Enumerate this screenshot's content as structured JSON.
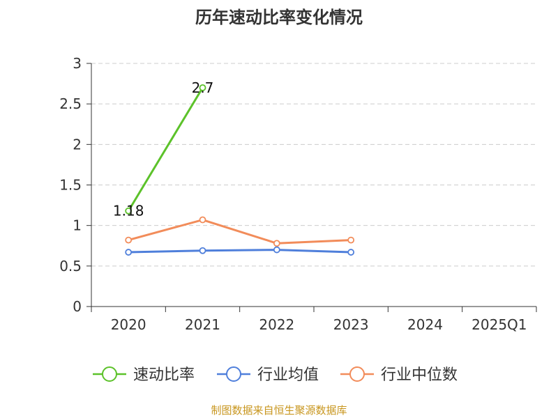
{
  "chart_data": {
    "type": "line",
    "title": "历年速动比率变化情况",
    "categories": [
      "2020",
      "2021",
      "2022",
      "2023",
      "2024",
      "2025Q1"
    ],
    "ylim": [
      0,
      3
    ],
    "yticks": [
      "0",
      "0.5",
      "1",
      "1.5",
      "2",
      "2.5",
      "3"
    ],
    "grid": true,
    "legend_position": "bottom",
    "series": [
      {
        "name": "速动比率",
        "color": "#5cc22a",
        "values": [
          1.18,
          2.7,
          null,
          null,
          null,
          null
        ],
        "labels": [
          "1.18",
          "2.7"
        ]
      },
      {
        "name": "行业均值",
        "color": "#4f7fdb",
        "values": [
          0.67,
          0.69,
          0.7,
          0.67,
          null,
          null
        ]
      },
      {
        "name": "行业中位数",
        "color": "#f28c5a",
        "values": [
          0.82,
          1.07,
          0.78,
          0.82,
          null,
          null
        ]
      }
    ]
  },
  "footer": {
    "source": "制图数据来自恒生聚源数据库"
  }
}
